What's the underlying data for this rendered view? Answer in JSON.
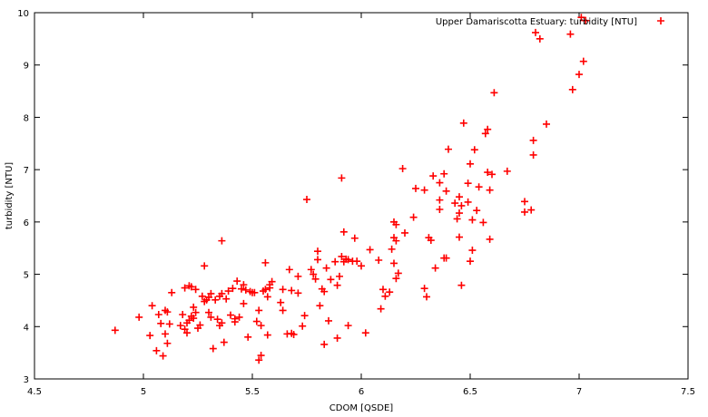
{
  "chart_data": {
    "type": "scatter",
    "xlabel": "CDOM [QSDE]",
    "ylabel": "turbidity [NTU]",
    "xlim": [
      4.5,
      7.5
    ],
    "ylim": [
      3,
      10
    ],
    "xticks": [
      "4.5",
      "5",
      "5.5",
      "6",
      "6.5",
      "7",
      "7.5"
    ],
    "yticks": [
      "3",
      "4",
      "5",
      "6",
      "7",
      "8",
      "9",
      "10"
    ],
    "grid": false,
    "legend_position": "top-right",
    "marker_color": "#ff0000",
    "series": [
      {
        "name": "Upper Damariscotta Estuary: turbidity [NTU]",
        "points": [
          [
            4.87,
            3.93
          ],
          [
            4.98,
            4.18
          ],
          [
            5.03,
            3.83
          ],
          [
            5.04,
            4.4
          ],
          [
            5.06,
            3.54
          ],
          [
            5.07,
            4.23
          ],
          [
            5.08,
            4.06
          ],
          [
            5.09,
            3.44
          ],
          [
            5.1,
            4.31
          ],
          [
            5.1,
            3.86
          ],
          [
            5.11,
            3.68
          ],
          [
            5.11,
            4.28
          ],
          [
            5.12,
            4.05
          ],
          [
            5.13,
            4.65
          ],
          [
            5.17,
            4.02
          ],
          [
            5.18,
            4.23
          ],
          [
            5.19,
            3.95
          ],
          [
            5.19,
            4.74
          ],
          [
            5.2,
            4.07
          ],
          [
            5.2,
            3.88
          ],
          [
            5.21,
            4.78
          ],
          [
            5.21,
            4.12
          ],
          [
            5.22,
            4.76
          ],
          [
            5.22,
            4.2
          ],
          [
            5.23,
            4.37
          ],
          [
            5.23,
            4.16
          ],
          [
            5.24,
            4.71
          ],
          [
            5.24,
            4.27
          ],
          [
            5.25,
            3.97
          ],
          [
            5.26,
            4.03
          ],
          [
            5.27,
            4.58
          ],
          [
            5.28,
            5.16
          ],
          [
            5.28,
            4.48
          ],
          [
            5.29,
            4.51
          ],
          [
            5.3,
            4.27
          ],
          [
            5.3,
            4.56
          ],
          [
            5.31,
            4.18
          ],
          [
            5.31,
            4.63
          ],
          [
            5.32,
            3.58
          ],
          [
            5.33,
            4.51
          ],
          [
            5.34,
            4.14
          ],
          [
            5.35,
            4.02
          ],
          [
            5.35,
            4.58
          ],
          [
            5.36,
            5.64
          ],
          [
            5.36,
            4.63
          ],
          [
            5.36,
            4.07
          ],
          [
            5.37,
            3.7
          ],
          [
            5.38,
            4.53
          ],
          [
            5.39,
            4.68
          ],
          [
            5.4,
            4.22
          ],
          [
            5.41,
            4.73
          ],
          [
            5.42,
            4.15
          ],
          [
            5.42,
            4.09
          ],
          [
            5.43,
            4.87
          ],
          [
            5.44,
            4.18
          ],
          [
            5.45,
            4.72
          ],
          [
            5.46,
            4.8
          ],
          [
            5.46,
            4.44
          ],
          [
            5.47,
            4.7
          ],
          [
            5.48,
            3.8
          ],
          [
            5.49,
            4.67
          ],
          [
            5.5,
            4.65
          ],
          [
            5.51,
            4.65
          ],
          [
            5.52,
            4.1
          ],
          [
            5.53,
            3.36
          ],
          [
            5.53,
            4.31
          ],
          [
            5.54,
            3.45
          ],
          [
            5.54,
            4.02
          ],
          [
            5.55,
            4.68
          ],
          [
            5.56,
            5.22
          ],
          [
            5.56,
            4.71
          ],
          [
            5.57,
            3.84
          ],
          [
            5.57,
            4.57
          ],
          [
            5.58,
            4.8
          ],
          [
            5.58,
            4.74
          ],
          [
            5.59,
            4.86
          ],
          [
            5.63,
            4.46
          ],
          [
            5.64,
            4.71
          ],
          [
            5.64,
            4.31
          ],
          [
            5.66,
            3.86
          ],
          [
            5.67,
            5.09
          ],
          [
            5.68,
            4.69
          ],
          [
            5.68,
            3.87
          ],
          [
            5.69,
            3.85
          ],
          [
            5.71,
            4.96
          ],
          [
            5.71,
            4.64
          ],
          [
            5.73,
            4.01
          ],
          [
            5.74,
            4.21
          ],
          [
            5.75,
            6.43
          ],
          [
            5.77,
            5.09
          ],
          [
            5.78,
            5.0
          ],
          [
            5.79,
            4.91
          ],
          [
            5.8,
            5.28
          ],
          [
            5.8,
            5.44
          ],
          [
            5.81,
            4.4
          ],
          [
            5.82,
            4.72
          ],
          [
            5.83,
            4.67
          ],
          [
            5.83,
            3.66
          ],
          [
            5.84,
            5.12
          ],
          [
            5.85,
            4.11
          ],
          [
            5.86,
            4.9
          ],
          [
            5.88,
            5.24
          ],
          [
            5.89,
            4.79
          ],
          [
            5.89,
            3.78
          ],
          [
            5.9,
            4.96
          ],
          [
            5.91,
            6.84
          ],
          [
            5.91,
            5.34
          ],
          [
            5.92,
            5.81
          ],
          [
            5.92,
            5.24
          ],
          [
            5.93,
            5.29
          ],
          [
            5.94,
            5.28
          ],
          [
            5.94,
            4.02
          ],
          [
            5.96,
            5.25
          ],
          [
            5.97,
            5.69
          ],
          [
            5.98,
            5.25
          ],
          [
            6.0,
            5.16
          ],
          [
            6.02,
            3.88
          ],
          [
            6.04,
            5.47
          ],
          [
            6.08,
            5.27
          ],
          [
            6.09,
            4.34
          ],
          [
            6.1,
            4.71
          ],
          [
            6.11,
            4.58
          ],
          [
            6.13,
            4.66
          ],
          [
            6.14,
            5.48
          ],
          [
            6.15,
            5.7
          ],
          [
            6.15,
            6.0
          ],
          [
            6.15,
            5.21
          ],
          [
            6.16,
            5.95
          ],
          [
            6.16,
            5.64
          ],
          [
            6.16,
            4.92
          ],
          [
            6.17,
            5.02
          ],
          [
            6.19,
            7.02
          ],
          [
            6.2,
            5.79
          ],
          [
            6.24,
            6.09
          ],
          [
            6.25,
            6.64
          ],
          [
            6.29,
            6.61
          ],
          [
            6.29,
            4.73
          ],
          [
            6.3,
            4.57
          ],
          [
            6.31,
            5.7
          ],
          [
            6.32,
            5.65
          ],
          [
            6.33,
            6.88
          ],
          [
            6.34,
            5.12
          ],
          [
            6.36,
            6.75
          ],
          [
            6.36,
            6.42
          ],
          [
            6.36,
            6.24
          ],
          [
            6.38,
            6.92
          ],
          [
            6.38,
            5.31
          ],
          [
            6.39,
            6.59
          ],
          [
            6.39,
            5.31
          ],
          [
            6.4,
            7.39
          ],
          [
            6.43,
            6.36
          ],
          [
            6.44,
            6.06
          ],
          [
            6.45,
            6.48
          ],
          [
            6.45,
            6.17
          ],
          [
            6.45,
            5.71
          ],
          [
            6.46,
            6.31
          ],
          [
            6.46,
            4.79
          ],
          [
            6.47,
            7.89
          ],
          [
            6.49,
            6.38
          ],
          [
            6.49,
            6.74
          ],
          [
            6.5,
            5.25
          ],
          [
            6.5,
            7.11
          ],
          [
            6.51,
            5.46
          ],
          [
            6.51,
            6.04
          ],
          [
            6.52,
            7.38
          ],
          [
            6.53,
            6.22
          ],
          [
            6.54,
            6.67
          ],
          [
            6.56,
            5.99
          ],
          [
            6.57,
            7.69
          ],
          [
            6.58,
            7.77
          ],
          [
            6.58,
            6.95
          ],
          [
            6.59,
            6.61
          ],
          [
            6.59,
            5.67
          ],
          [
            6.6,
            6.91
          ],
          [
            6.61,
            8.47
          ],
          [
            6.67,
            6.97
          ],
          [
            6.75,
            6.39
          ],
          [
            6.75,
            6.19
          ],
          [
            6.78,
            6.23
          ],
          [
            6.79,
            7.56
          ],
          [
            6.79,
            7.28
          ],
          [
            6.8,
            9.62
          ],
          [
            6.82,
            9.5
          ],
          [
            6.85,
            7.87
          ],
          [
            6.96,
            9.59
          ],
          [
            6.97,
            8.53
          ],
          [
            7.0,
            8.82
          ],
          [
            7.01,
            9.91
          ],
          [
            7.02,
            9.07
          ],
          [
            7.03,
            9.85
          ]
        ]
      }
    ]
  }
}
